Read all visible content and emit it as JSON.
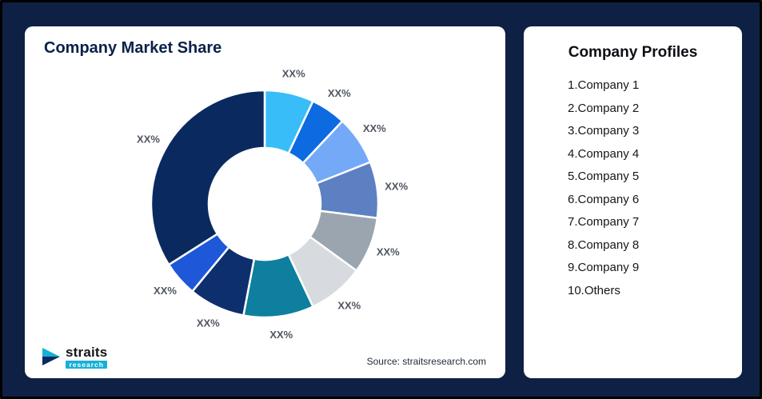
{
  "frame": {
    "background": "#0f2045",
    "border_color": "#000000"
  },
  "chart_card": {
    "title": "Company Market Share",
    "source": "Source: straitsresearch.com"
  },
  "logo": {
    "name": "straits",
    "sub": "research"
  },
  "profiles_card": {
    "title": "Company Profiles",
    "items": [
      "1.Company 1",
      "2.Company 2",
      "3.Company 3",
      "4.Company 4",
      "5.Company 5",
      "6.Company 6",
      "7.Company 7",
      "8.Company 8",
      "9.Company 9",
      "10.Others"
    ]
  },
  "chart_data": {
    "type": "pie",
    "subtype": "donut",
    "title": "Company Market Share",
    "legend_position": "none",
    "data_labels": "outside",
    "start_angle_deg": -90,
    "direction": "clockwise",
    "segments": [
      {
        "name": "Company 1",
        "label": "XX%",
        "value": 7,
        "color": "#38bdf8"
      },
      {
        "name": "Company 2",
        "label": "XX%",
        "value": 5,
        "color": "#0d6ae0"
      },
      {
        "name": "Company 3",
        "label": "XX%",
        "value": 7,
        "color": "#74a9f7"
      },
      {
        "name": "Company 4",
        "label": "XX%",
        "value": 8,
        "color": "#5c80c2"
      },
      {
        "name": "Company 5",
        "label": "XX%",
        "value": 8,
        "color": "#9ba5b0"
      },
      {
        "name": "Company 6",
        "label": "XX%",
        "value": 8,
        "color": "#d7dbdf"
      },
      {
        "name": "Company 7",
        "label": "XX%",
        "value": 10,
        "color": "#0e7f9e"
      },
      {
        "name": "Company 8",
        "label": "XX%",
        "value": 8,
        "color": "#0d2f6d"
      },
      {
        "name": "Company 9",
        "label": "XX%",
        "value": 5,
        "color": "#1e57d8"
      },
      {
        "name": "Others",
        "label": "XX%",
        "value": 34,
        "color": "#0a2a5f"
      }
    ]
  }
}
